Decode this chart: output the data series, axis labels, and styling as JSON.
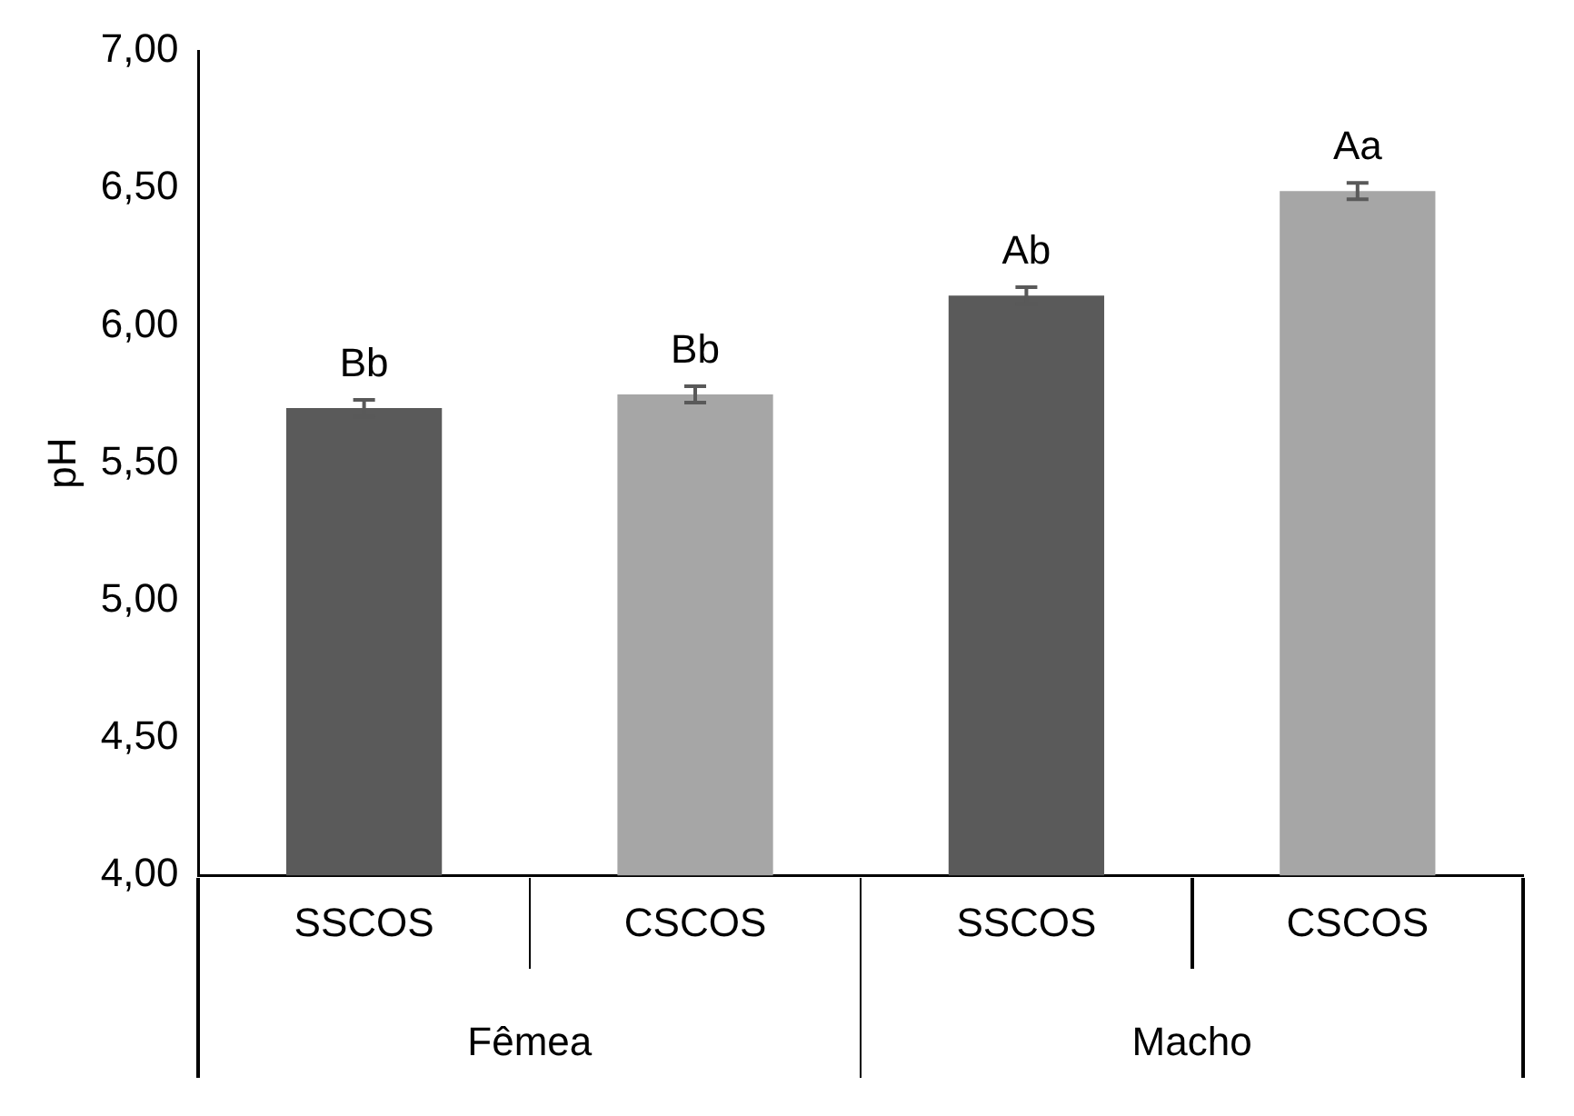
{
  "chart_data": {
    "type": "bar",
    "ylabel": "pH",
    "categories": [
      "SSCOS",
      "CSCOS",
      "SSCOS",
      "CSCOS"
    ],
    "values": [
      5.7,
      5.75,
      6.11,
      6.49
    ],
    "errors": [
      0.03,
      0.03,
      0.03,
      0.03
    ],
    "value_labels": [
      "Bb",
      "Bb",
      "Ab",
      "Aa"
    ],
    "colors": [
      "#5a5a5a",
      "#a6a6a6",
      "#5a5a5a",
      "#a6a6a6"
    ],
    "annotations": [
      "Fêmea",
      "Macho"
    ],
    "ylim": [
      4,
      7
    ],
    "yticks": [
      {
        "value": 4,
        "label": "4,00"
      },
      {
        "value": 4.5,
        "label": "4,50"
      },
      {
        "value": 5,
        "label": "5,00"
      },
      {
        "value": 5.5,
        "label": "5,50"
      },
      {
        "value": 6,
        "label": "6,00"
      },
      {
        "value": 6.5,
        "label": "6,50"
      },
      {
        "value": 7,
        "label": "7,00"
      }
    ],
    "grid": false,
    "legend": false
  }
}
